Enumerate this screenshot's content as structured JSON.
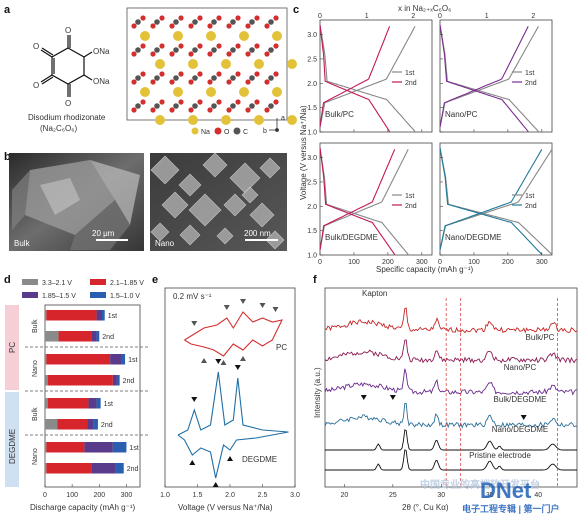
{
  "panels": {
    "a": {
      "label": "a",
      "molecule_name": "Disodium rhodizonate",
      "formula": "(Na₂C₆O₆)",
      "ona_label": "ONa",
      "o_label": "O",
      "legend": [
        "Na",
        "O",
        "C"
      ],
      "axes": [
        "a",
        "b"
      ]
    },
    "b": {
      "label": "b",
      "left_caption": "Bulk",
      "left_scale": "20 μm",
      "right_caption": "Nano",
      "right_scale": "200 nm"
    },
    "c": {
      "label": "c",
      "top_label": "x in Na₂₊ₓC₆O₆",
      "ylabel": "Voltage (V versus Na⁺/Na)",
      "xlabel": "Specific capacity (mAh g⁻¹)",
      "top_ticks": [
        "0",
        "1",
        "2"
      ],
      "y_ticks": [
        "1.0",
        "1.5",
        "2.0",
        "2.5",
        "3.0"
      ],
      "x_ticks": [
        "0",
        "100",
        "200",
        "300"
      ],
      "subplots": [
        {
          "name": "Bulk/PC",
          "color1": "#888888",
          "color2": "#c2185b"
        },
        {
          "name": "Nano/PC",
          "color1": "#888888",
          "color2": "#7b2d8e"
        },
        {
          "name": "Bulk/DEGDME",
          "color1": "#888888",
          "color2": "#c2185b"
        },
        {
          "name": "Nano/DEGDME",
          "color1": "#888888",
          "color2": "#1f7a9a"
        }
      ],
      "legend": [
        "1st",
        "2nd"
      ]
    },
    "d": {
      "label": "d",
      "legend": [
        "3.3–2.1 V",
        "2.1–1.85 V",
        "1.85–1.5 V",
        "1.5–1.0 V"
      ],
      "legend_colors": [
        "#8a8a8a",
        "#d6262b",
        "#5a3a8a",
        "#2a5fb0"
      ],
      "group_labels": [
        "PC",
        "DEGDME"
      ],
      "sub_labels": [
        "Bulk",
        "Nano",
        "Bulk",
        "Nano"
      ],
      "cycle_labels": [
        "1st",
        "2nd"
      ],
      "xlabel": "Discharge capacity (mAh g⁻¹)",
      "x_ticks": [
        "0",
        "100",
        "200",
        "300"
      ]
    },
    "e": {
      "label": "e",
      "scan_rate": "0.2 mV s⁻¹",
      "pc_label": "PC",
      "degdme_label": "DEGDME",
      "xlabel": "Voltage (V versus Na⁺/Na)",
      "x_ticks": [
        "1.0",
        "1.5",
        "2.0",
        "2.5",
        "3.0"
      ]
    },
    "f": {
      "label": "f",
      "kapton": "Kapton",
      "ylabel": "Intensity (a.u.)",
      "xlabel": "2θ (°, Cu Kα)",
      "x_ticks": [
        "20",
        "25",
        "30",
        "35",
        "40"
      ],
      "traces": [
        "Bulk/PC",
        "Nano/PC",
        "Bulk/DEGDME",
        "Nano/DEGDME",
        "Pristine electrode"
      ],
      "trace_colors": [
        "#c62828",
        "#8b1c55",
        "#6a2a8e",
        "#2c6f99",
        "#111111"
      ]
    }
  },
  "chart_data": [
    {
      "type": "bar",
      "title": "",
      "xlabel": "Discharge capacity (mAh g⁻¹)",
      "categories": [
        "PC Bulk 1st",
        "PC Bulk 2nd",
        "PC Nano 1st",
        "PC Nano 2nd",
        "DEGDME Bulk 1st",
        "DEGDME Bulk 2nd",
        "DEGDME Nano 1st",
        "DEGDME Nano 2nd"
      ],
      "series": [
        {
          "name": "3.3–2.1 V",
          "values": [
            5,
            50,
            5,
            10,
            10,
            45,
            5,
            5
          ]
        },
        {
          "name": "2.1–1.85 V",
          "values": [
            185,
            120,
            235,
            240,
            150,
            110,
            140,
            165
          ]
        },
        {
          "name": "1.85–1.5 V",
          "values": [
            20,
            20,
            40,
            15,
            30,
            25,
            105,
            90
          ]
        },
        {
          "name": "1.5–1.0 V",
          "values": [
            10,
            10,
            15,
            10,
            15,
            15,
            50,
            30
          ]
        }
      ],
      "xlim": [
        0,
        350
      ]
    }
  ],
  "watermark": {
    "cn": "中国专业的高端软开发平台",
    "logo": "DNet",
    "sub": "电子工程专辑 | 第一门户"
  }
}
